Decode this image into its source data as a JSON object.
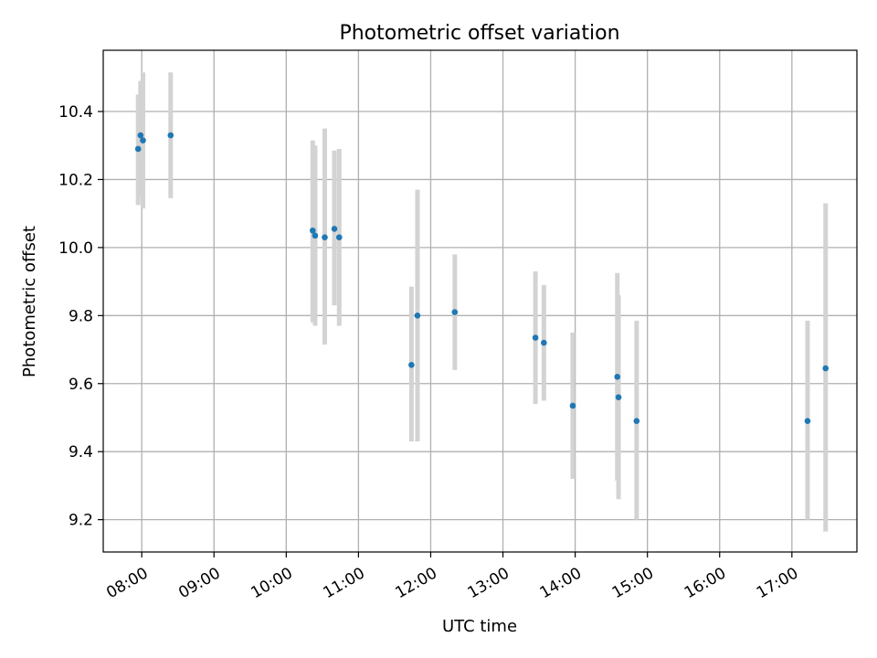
{
  "chart_data": {
    "type": "scatter",
    "title": "Photometric offset variation",
    "xlabel": "UTC time",
    "ylabel": "Photometric offset",
    "x_ticks": [
      "08:00",
      "09:00",
      "10:00",
      "11:00",
      "12:00",
      "13:00",
      "14:00",
      "15:00",
      "16:00",
      "17:00"
    ],
    "y_ticks": [
      "9.2",
      "9.4",
      "9.6",
      "9.8",
      "10.0",
      "10.2",
      "10.4"
    ],
    "xlim": [
      "07:28",
      "17:54"
    ],
    "ylim": [
      9.105,
      10.58
    ],
    "grid": true,
    "colors": {
      "point": "#1f77b4",
      "errorbar": "#d3d3d3",
      "grid": "#b0b0b0"
    },
    "points": [
      {
        "time": "07:57",
        "y": 10.29,
        "err_low": 10.125,
        "err_high": 10.45
      },
      {
        "time": "07:59",
        "y": 10.33,
        "err_low": 10.15,
        "err_high": 10.49
      },
      {
        "time": "08:01",
        "y": 10.315,
        "err_low": 10.115,
        "err_high": 10.515
      },
      {
        "time": "08:24",
        "y": 10.33,
        "err_low": 10.145,
        "err_high": 10.515
      },
      {
        "time": "10:22",
        "y": 10.05,
        "err_low": 9.78,
        "err_high": 10.315
      },
      {
        "time": "10:24",
        "y": 10.035,
        "err_low": 9.77,
        "err_high": 10.3
      },
      {
        "time": "10:32",
        "y": 10.03,
        "err_low": 9.715,
        "err_high": 10.35
      },
      {
        "time": "10:40",
        "y": 10.055,
        "err_low": 9.83,
        "err_high": 10.285
      },
      {
        "time": "10:44",
        "y": 10.03,
        "err_low": 9.77,
        "err_high": 10.29
      },
      {
        "time": "11:44",
        "y": 9.655,
        "err_low": 9.43,
        "err_high": 9.885
      },
      {
        "time": "11:49",
        "y": 9.8,
        "err_low": 9.43,
        "err_high": 10.17
      },
      {
        "time": "12:20",
        "y": 9.81,
        "err_low": 9.64,
        "err_high": 9.98
      },
      {
        "time": "13:27",
        "y": 9.735,
        "err_low": 9.54,
        "err_high": 9.93
      },
      {
        "time": "13:34",
        "y": 9.72,
        "err_low": 9.55,
        "err_high": 9.89
      },
      {
        "time": "13:58",
        "y": 9.535,
        "err_low": 9.32,
        "err_high": 9.75
      },
      {
        "time": "14:35",
        "y": 9.62,
        "err_low": 9.315,
        "err_high": 9.925
      },
      {
        "time": "14:36",
        "y": 9.56,
        "err_low": 9.26,
        "err_high": 9.86
      },
      {
        "time": "14:51",
        "y": 9.49,
        "err_low": 9.2,
        "err_high": 9.785
      },
      {
        "time": "17:13",
        "y": 9.49,
        "err_low": 9.2,
        "err_high": 9.785
      },
      {
        "time": "17:28",
        "y": 9.645,
        "err_low": 9.165,
        "err_high": 10.13
      }
    ]
  }
}
